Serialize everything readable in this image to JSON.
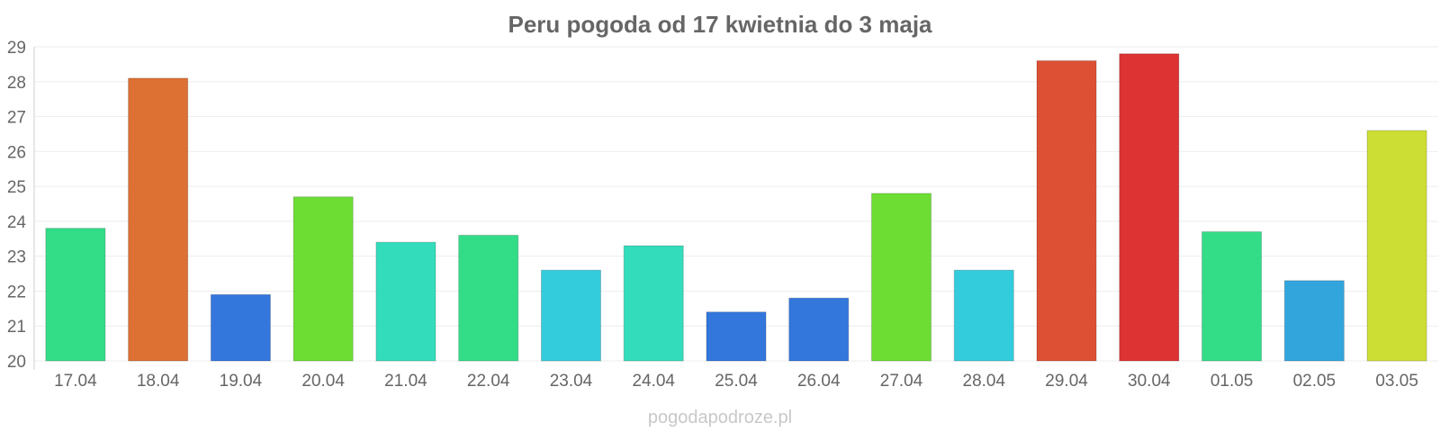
{
  "chart_data": {
    "type": "bar",
    "title": "Peru pogoda od 17 kwietnia do 3 maja",
    "xlabel": "",
    "ylabel": "",
    "categories": [
      "17.04",
      "18.04",
      "19.04",
      "20.04",
      "21.04",
      "22.04",
      "23.04",
      "24.04",
      "25.04",
      "26.04",
      "27.04",
      "28.04",
      "29.04",
      "30.04",
      "01.05",
      "02.05",
      "03.05"
    ],
    "values": [
      23.8,
      28.1,
      21.9,
      24.7,
      23.4,
      23.6,
      22.6,
      23.3,
      21.4,
      21.8,
      24.8,
      22.6,
      28.6,
      28.8,
      23.7,
      22.3,
      26.6
    ],
    "colors": [
      "#33dd88",
      "#dd7033",
      "#3377dd",
      "#6ddd33",
      "#33ddbb",
      "#33dd88",
      "#33ccdd",
      "#33ddbb",
      "#3377dd",
      "#3377dd",
      "#6ddd33",
      "#33ccdd",
      "#dd5033",
      "#dd3333",
      "#33dd88",
      "#33a5dd",
      "#ccdd33"
    ],
    "ylim": [
      20,
      29
    ],
    "yticks": [
      "20",
      "21",
      "22",
      "23",
      "24",
      "25",
      "26",
      "27",
      "28",
      "29"
    ],
    "grid": true,
    "legend": "none"
  },
  "watermark": "pogodapodroze.pl"
}
